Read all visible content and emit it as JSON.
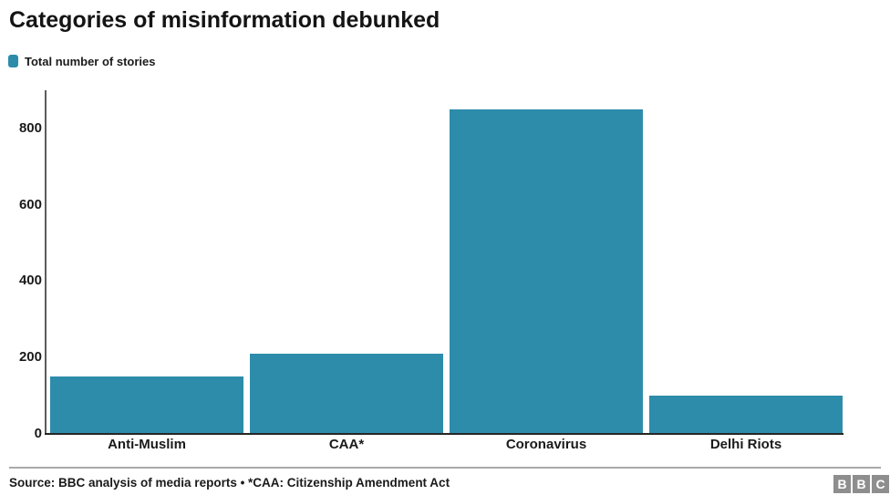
{
  "header": {
    "title": "Categories of misinformation debunked"
  },
  "legend": {
    "label": "Total number of stories",
    "swatch_color": "#2d8caa"
  },
  "chart_data": {
    "type": "bar",
    "title": "Categories of misinformation debunked",
    "series_label": "Total number of stories",
    "categories": [
      "Anti-Muslim",
      "CAA*",
      "Coronavirus",
      "Delhi Riots"
    ],
    "values": [
      150,
      210,
      850,
      100
    ],
    "xlabel": "",
    "ylabel": "",
    "ylim": [
      0,
      900
    ],
    "yticks": [
      0,
      200,
      400,
      600,
      800
    ],
    "bar_color": "#2d8caa",
    "grid": false,
    "legend_position": "top-left"
  },
  "footer": {
    "source": "Source: BBC analysis of media reports • *CAA: Citizenship Amendment Act",
    "logo_blocks": [
      "B",
      "B",
      "C"
    ],
    "logo_color": "#8e8e8e"
  }
}
